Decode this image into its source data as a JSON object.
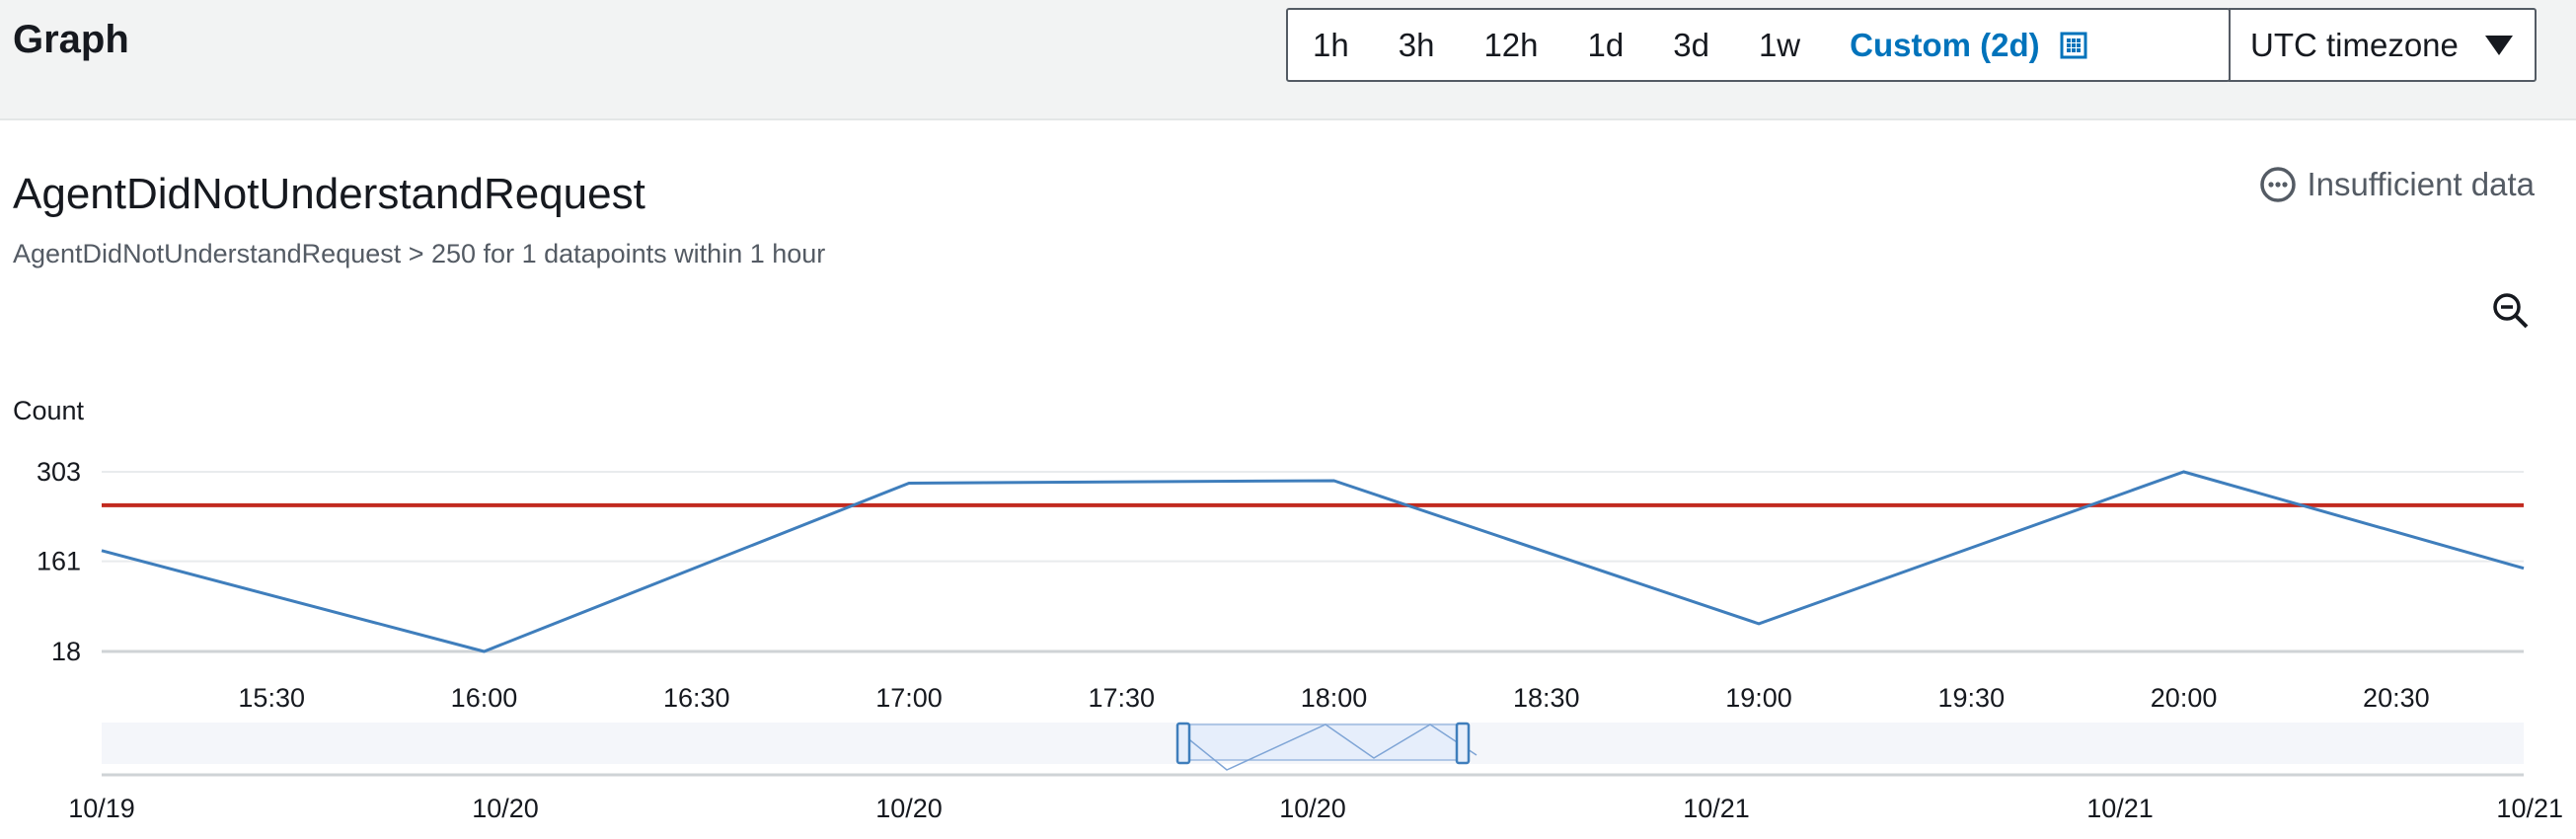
{
  "header": {
    "title": "Graph",
    "ranges": [
      "1h",
      "3h",
      "12h",
      "1d",
      "3d",
      "1w"
    ],
    "custom_label": "Custom (2d)",
    "timezone": "UTC timezone"
  },
  "alarm": {
    "name": "AgentDidNotUnderstandRequest",
    "description": "AgentDidNotUnderstandRequest > 250 for 1 datapoints within 1 hour",
    "status": "Insufficient data"
  },
  "colors": {
    "series": "#3f7ebc",
    "threshold": "#c22a1f",
    "accent": "#0073bb"
  },
  "icons": {
    "status": "ellipsis-circle-icon",
    "zoom": "zoom-out-icon",
    "calendar": "calendar-icon",
    "dropdown": "caret-down-icon"
  },
  "chart_data": {
    "type": "line",
    "ylabel": "Count",
    "yticks": [
      18,
      161,
      303
    ],
    "ylim": [
      18,
      303
    ],
    "xticks": [
      "15:30",
      "16:00",
      "16:30",
      "17:00",
      "17:30",
      "18:00",
      "18:30",
      "19:00",
      "19:30",
      "20:00",
      "20:30"
    ],
    "xlim": [
      "15:06",
      "20:48"
    ],
    "grid": true,
    "series": [
      {
        "x": [
          "15:06",
          "16:00",
          "17:00",
          "18:00",
          "19:00",
          "20:00",
          "20:48"
        ],
        "y": [
          178,
          18,
          285,
          289,
          62,
          303,
          150
        ]
      }
    ],
    "threshold": 250,
    "overview_ticks": [
      "10/19",
      "10/20",
      "10/20",
      "10/20",
      "10/21",
      "10/21",
      "10/21"
    ]
  }
}
